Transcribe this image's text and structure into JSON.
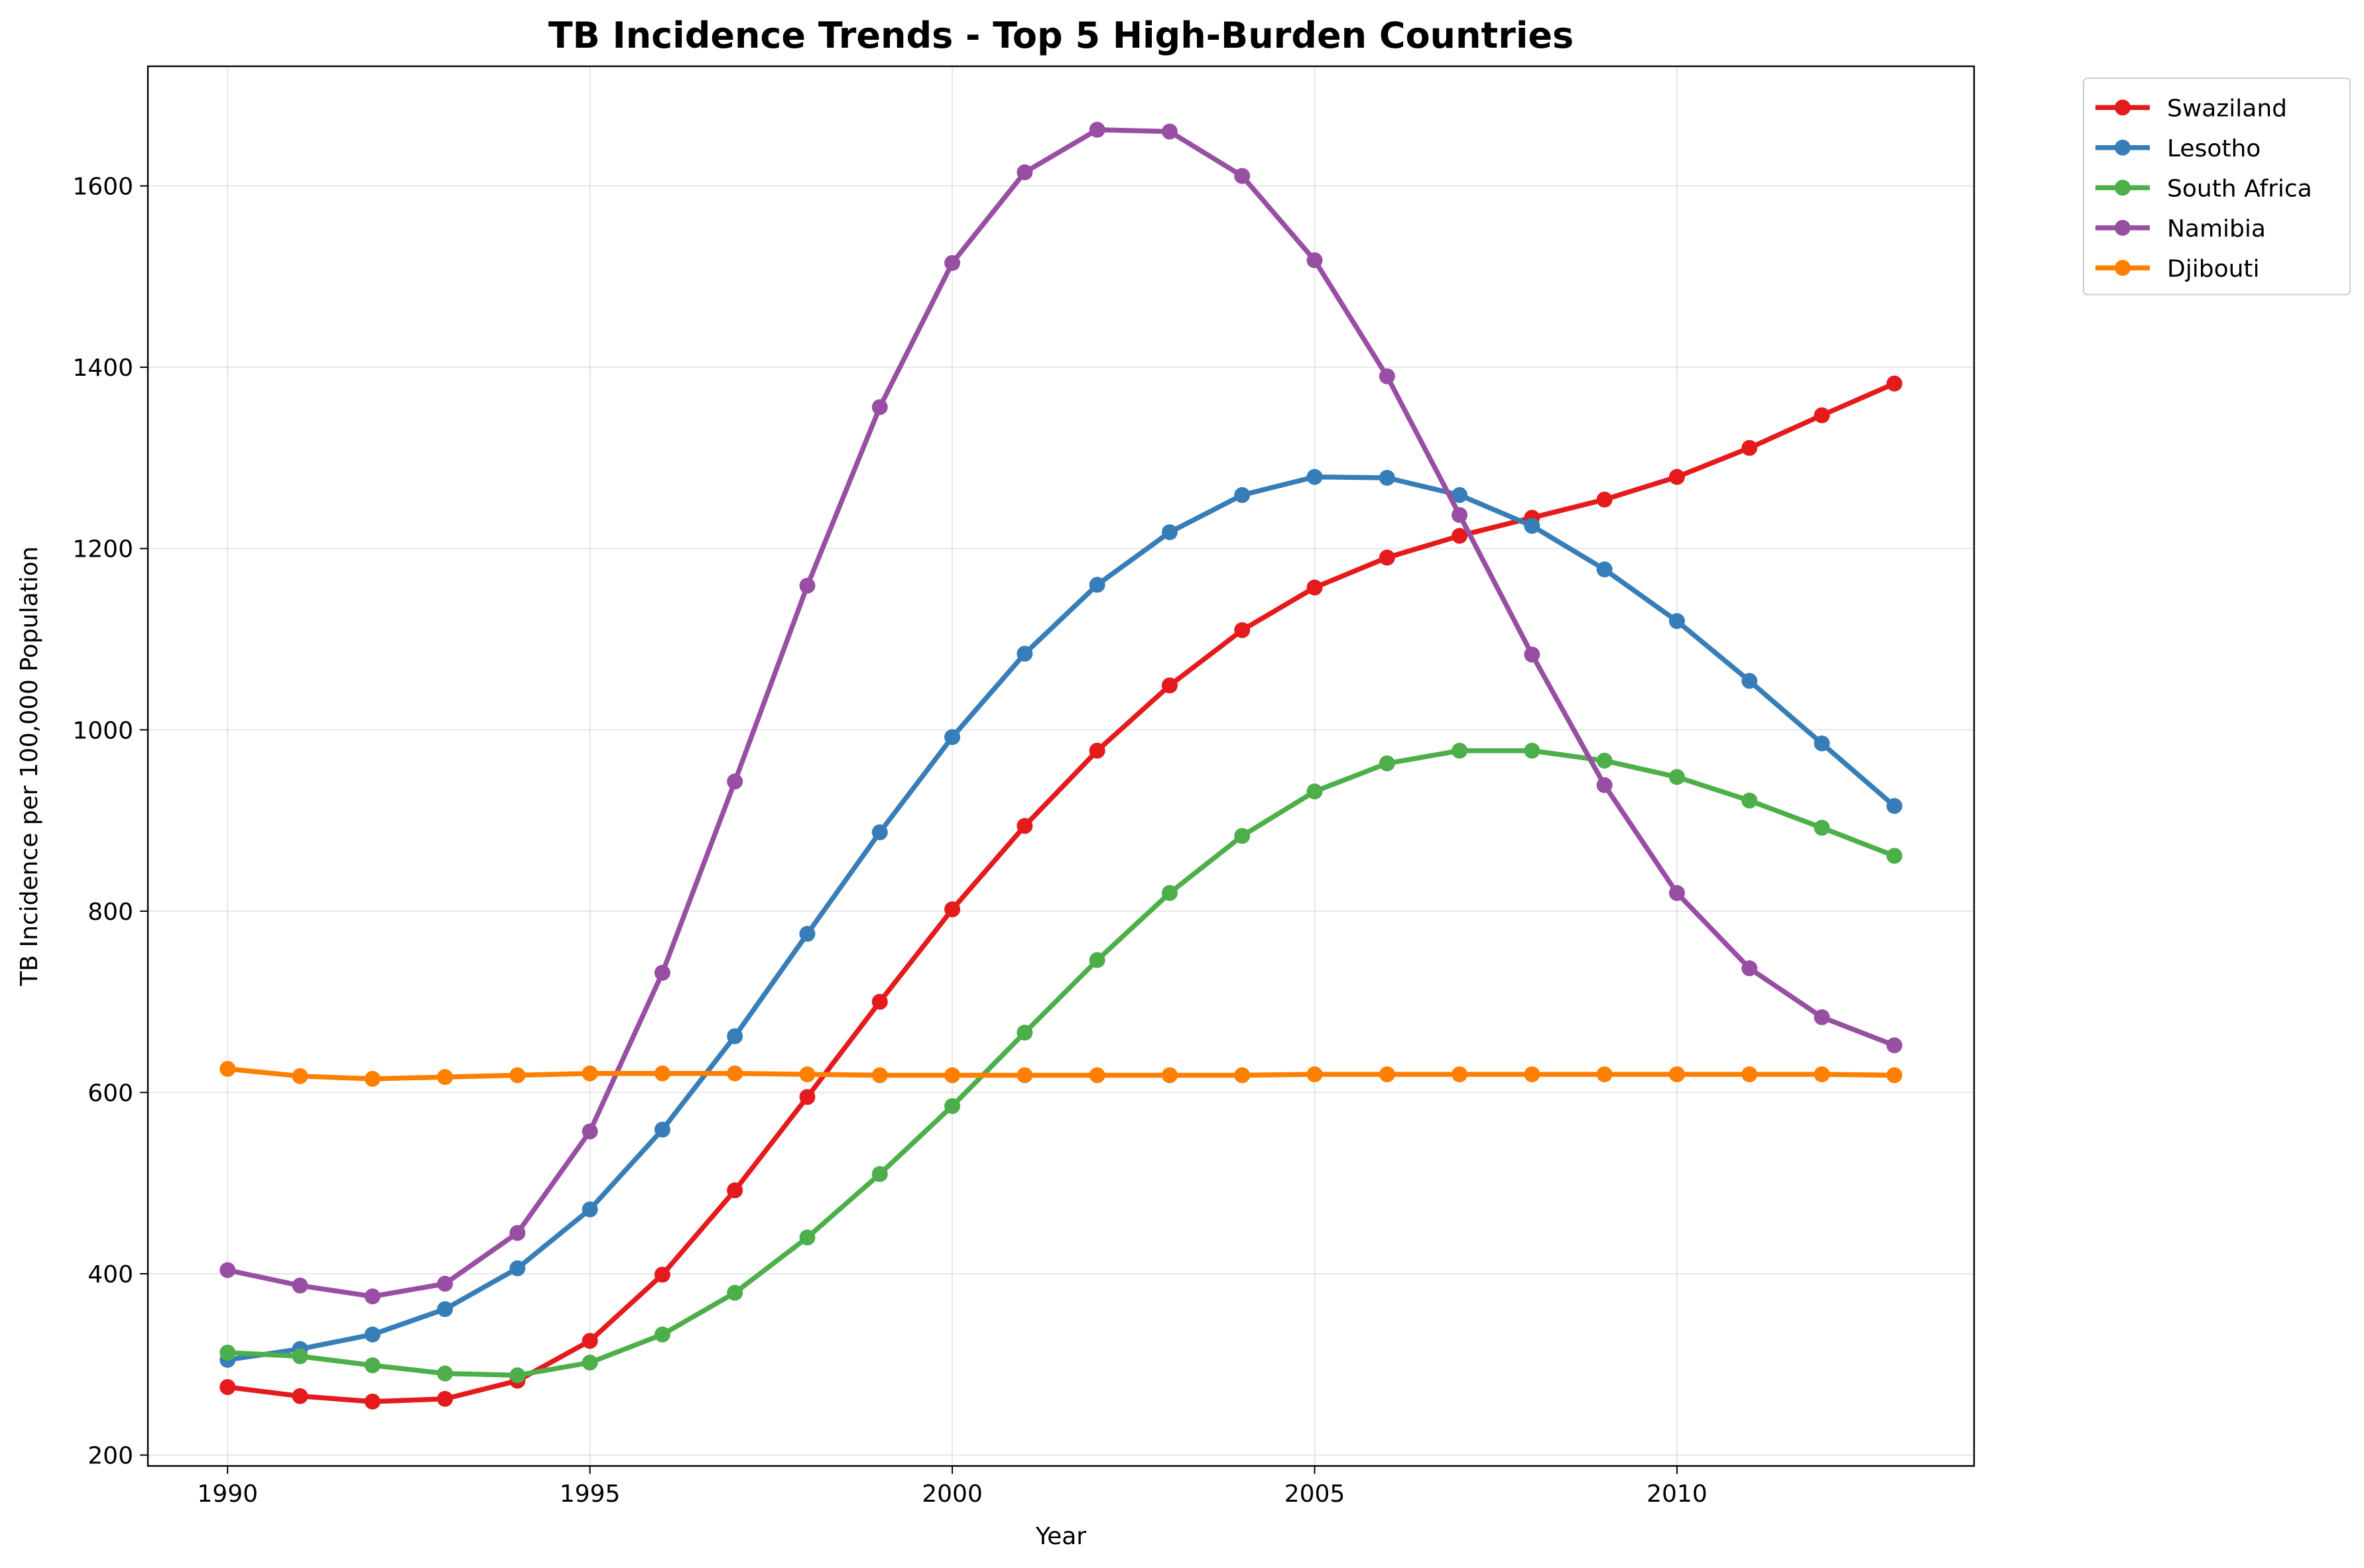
{
  "chart_data": {
    "type": "line",
    "title": "TB Incidence Trends - Top 5 High-Burden Countries",
    "xlabel": "Year",
    "ylabel": "TB Incidence per 100,000 Population",
    "xlim": [
      1988.9,
      2014.1
    ],
    "ylim": [
      188,
      1732
    ],
    "x_ticks": [
      1990,
      1995,
      2000,
      2005,
      2010
    ],
    "y_ticks": [
      200,
      400,
      600,
      800,
      1000,
      1200,
      1400,
      1600
    ],
    "grid": true,
    "legend_position": "outside-top-right",
    "x": [
      1990,
      1991,
      1992,
      1993,
      1994,
      1995,
      1996,
      1997,
      1998,
      1999,
      2000,
      2001,
      2002,
      2003,
      2004,
      2005,
      2006,
      2007,
      2008,
      2009,
      2010,
      2011,
      2012,
      2013
    ],
    "series": [
      {
        "name": "Swaziland",
        "color": "#e41a1c",
        "values": [
          275,
          265,
          259,
          262,
          282,
          326,
          399,
          492,
          595,
          700,
          802,
          894,
          977,
          1049,
          1110,
          1157,
          1190,
          1214,
          1234,
          1254,
          1279,
          1311,
          1347,
          1382
        ]
      },
      {
        "name": "Lesotho",
        "color": "#377eb8",
        "values": [
          305,
          317,
          333,
          361,
          406,
          471,
          559,
          662,
          775,
          887,
          992,
          1084,
          1160,
          1218,
          1259,
          1279,
          1278,
          1259,
          1225,
          1177,
          1120,
          1054,
          985,
          916
        ]
      },
      {
        "name": "South Africa",
        "color": "#4daf4a",
        "values": [
          313,
          309,
          299,
          290,
          288,
          302,
          333,
          379,
          440,
          510,
          585,
          666,
          746,
          820,
          883,
          932,
          963,
          977,
          977,
          966,
          948,
          922,
          892,
          861
        ]
      },
      {
        "name": "Namibia",
        "color": "#984ea3",
        "values": [
          404,
          387,
          375,
          389,
          445,
          557,
          732,
          943,
          1159,
          1356,
          1515,
          1615,
          1662,
          1660,
          1611,
          1518,
          1390,
          1237,
          1083,
          939,
          820,
          737,
          683,
          652
        ]
      },
      {
        "name": "Djibouti",
        "color": "#ff7f00",
        "values": [
          626,
          618,
          615,
          617,
          619,
          621,
          621,
          621,
          620,
          619,
          619,
          619,
          619,
          619,
          619,
          620,
          620,
          620,
          620,
          620,
          620,
          620,
          620,
          619
        ]
      }
    ]
  }
}
